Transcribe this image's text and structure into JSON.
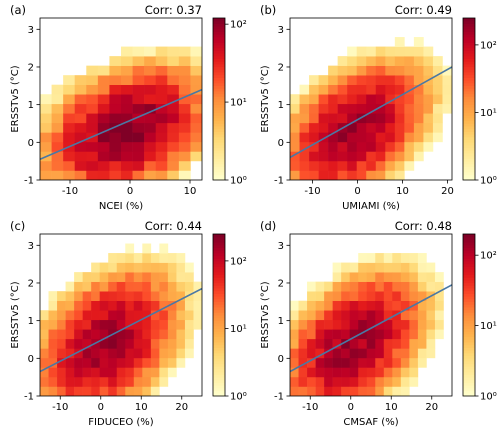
{
  "colormap": {
    "stops": [
      "#ffffcc",
      "#ffeda0",
      "#fed976",
      "#feb24c",
      "#fd8d3c",
      "#fc4e2a",
      "#e31a1c",
      "#bd0026",
      "#800026"
    ],
    "regression_line_color": "#4a78a4"
  },
  "chart_data": [
    {
      "type": "heatmap",
      "panel_label": "(a)",
      "corr_text": "Corr: 0.37",
      "xlabel": "NCEI (%)",
      "ylabel": "ERSSTv5 (°C)",
      "xlim": [
        -15,
        12
      ],
      "ylim": [
        -1,
        3.3
      ],
      "xticks": [
        -10,
        0,
        10
      ],
      "yticks": [
        -1,
        0,
        1,
        2,
        3
      ],
      "colorbar": {
        "scale": "log",
        "ticks": [
          "10⁰",
          "10¹",
          "10²"
        ],
        "vmin": 1,
        "vmax": 120
      },
      "regression": {
        "x": [
          -15,
          12
        ],
        "y": [
          -0.45,
          1.4
        ]
      },
      "density": {
        "cx": -0.5,
        "cy": 0.35,
        "sx": 4.5,
        "sy": 0.55,
        "rho": 0.35,
        "peak": 110
      },
      "bin_grid": {
        "x0": -15,
        "nx": 14,
        "y0": -1,
        "ny": 17
      }
    },
    {
      "type": "heatmap",
      "panel_label": "(b)",
      "corr_text": "Corr: 0.49",
      "xlabel": "UMIAMI (%)",
      "ylabel": "ERSSTv5 (°C)",
      "xlim": [
        -15,
        21
      ],
      "ylim": [
        -1,
        3.3
      ],
      "xticks": [
        -10,
        0,
        10,
        20
      ],
      "yticks": [
        -1,
        0,
        1,
        2,
        3
      ],
      "colorbar": {
        "scale": "log",
        "ticks": [
          "10⁰",
          "10¹",
          "10²"
        ],
        "vmin": 1,
        "vmax": 250
      },
      "regression": {
        "x": [
          -15,
          21
        ],
        "y": [
          -0.4,
          2.0
        ]
      },
      "density": {
        "cx": -0.5,
        "cy": 0.35,
        "sx": 5.0,
        "sy": 0.55,
        "rho": 0.45,
        "peak": 180
      },
      "bin_grid": {
        "x0": -15,
        "nx": 17,
        "y0": -1,
        "ny": 17
      }
    },
    {
      "type": "heatmap",
      "panel_label": "(c)",
      "corr_text": "Corr: 0.44",
      "xlabel": "FIDUCEO (%)",
      "ylabel": "ERSSTv5 (°C)",
      "xlim": [
        -15,
        25
      ],
      "ylim": [
        -1,
        3.3
      ],
      "xticks": [
        -10,
        0,
        10,
        20
      ],
      "yticks": [
        -1,
        0,
        1,
        2,
        3
      ],
      "colorbar": {
        "scale": "log",
        "ticks": [
          "10⁰",
          "10¹",
          "10²"
        ],
        "vmin": 1,
        "vmax": 250
      },
      "regression": {
        "x": [
          -15,
          25
        ],
        "y": [
          -0.35,
          1.85
        ]
      },
      "density": {
        "cx": 1.5,
        "cy": 0.4,
        "sx": 5.5,
        "sy": 0.6,
        "rho": 0.4,
        "peak": 170
      },
      "bin_grid": {
        "x0": -15,
        "nx": 19,
        "y0": -1,
        "ny": 17
      }
    },
    {
      "type": "heatmap",
      "panel_label": "(d)",
      "corr_text": "Corr: 0.48",
      "xlabel": "CMSAF (%)",
      "ylabel": "ERSSTv5 (°C)",
      "xlim": [
        -15,
        25
      ],
      "ylim": [
        -1,
        3.3
      ],
      "xticks": [
        -10,
        0,
        10,
        20
      ],
      "yticks": [
        -1,
        0,
        1,
        2,
        3
      ],
      "colorbar": {
        "scale": "log",
        "ticks": [
          "10⁰",
          "10¹",
          "10²"
        ],
        "vmin": 1,
        "vmax": 200
      },
      "regression": {
        "x": [
          -15,
          25
        ],
        "y": [
          -0.35,
          1.95
        ]
      },
      "density": {
        "cx": 0.5,
        "cy": 0.35,
        "sx": 5.5,
        "sy": 0.6,
        "rho": 0.45,
        "peak": 150
      },
      "bin_grid": {
        "x0": -15,
        "nx": 19,
        "y0": -1,
        "ny": 17
      }
    }
  ]
}
